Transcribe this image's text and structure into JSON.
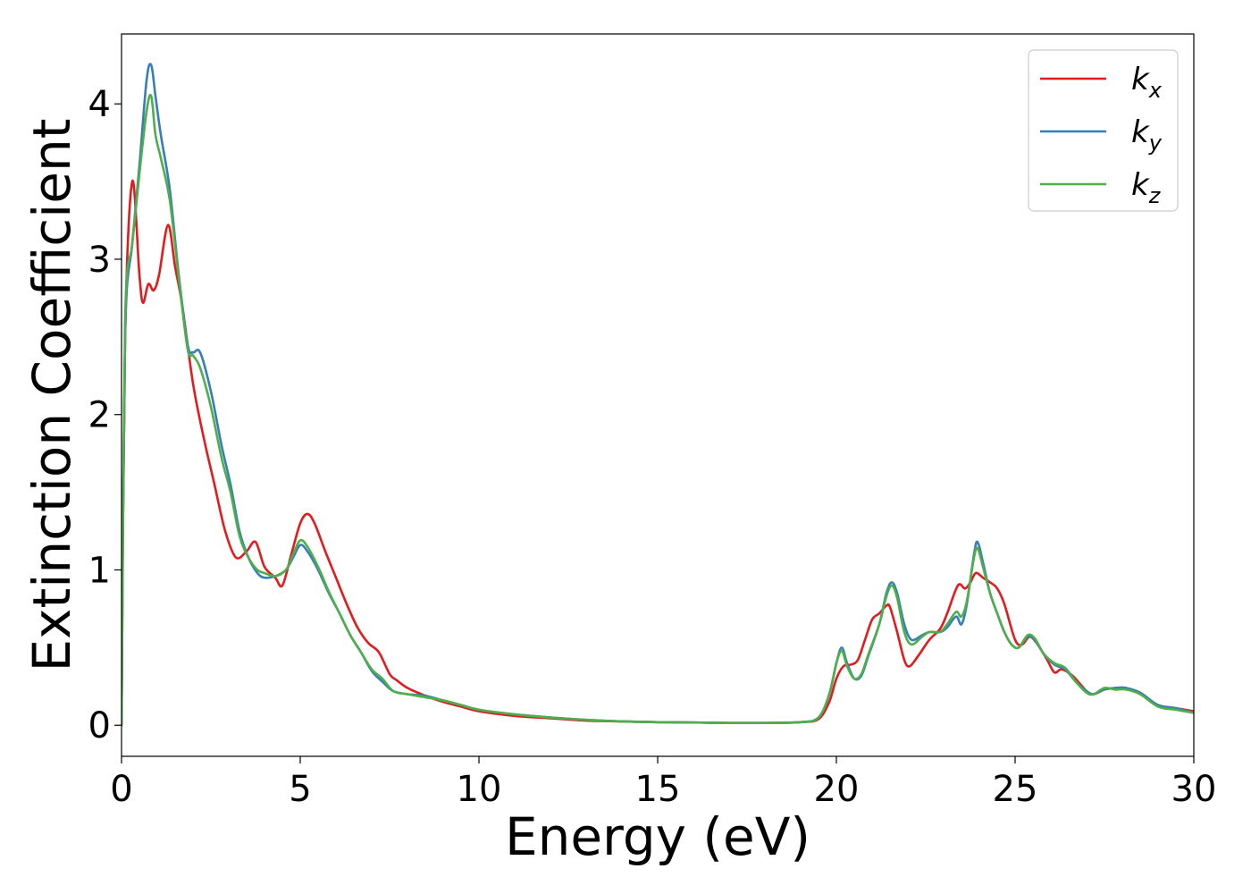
{
  "chart_data": {
    "type": "line",
    "xlabel": "Energy (eV)",
    "ylabel": "Extinction Coefficient",
    "xlim": [
      0,
      30
    ],
    "ylim": [
      -0.2,
      4.45
    ],
    "xticks": [
      0,
      5,
      10,
      15,
      20,
      25,
      30
    ],
    "yticks": [
      0,
      1,
      2,
      3,
      4
    ],
    "grid": false,
    "legend_position": "top-right",
    "series": [
      {
        "name": "k_x",
        "label_main": "k",
        "label_sub": "x",
        "color": "#e41a1c",
        "points": [
          [
            0,
            0
          ],
          [
            0.1,
            2.5
          ],
          [
            0.3,
            3.5
          ],
          [
            0.5,
            2.9
          ],
          [
            0.6,
            2.72
          ],
          [
            0.75,
            2.84
          ],
          [
            0.9,
            2.8
          ],
          [
            1.05,
            2.9
          ],
          [
            1.3,
            3.22
          ],
          [
            1.5,
            2.95
          ],
          [
            1.7,
            2.7
          ],
          [
            2,
            2.2
          ],
          [
            2.3,
            1.85
          ],
          [
            2.6,
            1.55
          ],
          [
            2.9,
            1.25
          ],
          [
            3.2,
            1.08
          ],
          [
            3.5,
            1.12
          ],
          [
            3.75,
            1.18
          ],
          [
            4,
            1.02
          ],
          [
            4.3,
            0.95
          ],
          [
            4.5,
            0.9
          ],
          [
            4.75,
            1.1
          ],
          [
            5,
            1.3
          ],
          [
            5.2,
            1.36
          ],
          [
            5.4,
            1.3
          ],
          [
            5.7,
            1.12
          ],
          [
            6,
            0.95
          ],
          [
            6.3,
            0.78
          ],
          [
            6.6,
            0.63
          ],
          [
            6.9,
            0.53
          ],
          [
            7.2,
            0.47
          ],
          [
            7.5,
            0.33
          ],
          [
            7.7,
            0.29
          ],
          [
            8,
            0.24
          ],
          [
            8.5,
            0.19
          ],
          [
            9,
            0.15
          ],
          [
            9.5,
            0.12
          ],
          [
            10,
            0.09
          ],
          [
            11,
            0.06
          ],
          [
            12,
            0.045
          ],
          [
            13,
            0.03
          ],
          [
            14,
            0.025
          ],
          [
            15,
            0.02
          ],
          [
            16,
            0.018
          ],
          [
            17,
            0.015
          ],
          [
            18,
            0.015
          ],
          [
            19,
            0.02
          ],
          [
            19.5,
            0.04
          ],
          [
            19.8,
            0.15
          ],
          [
            20,
            0.3
          ],
          [
            20.2,
            0.38
          ],
          [
            20.4,
            0.39
          ],
          [
            20.6,
            0.42
          ],
          [
            20.8,
            0.55
          ],
          [
            21,
            0.68
          ],
          [
            21.2,
            0.72
          ],
          [
            21.4,
            0.77
          ],
          [
            21.5,
            0.76
          ],
          [
            21.7,
            0.6
          ],
          [
            21.9,
            0.42
          ],
          [
            22.05,
            0.38
          ],
          [
            22.3,
            0.45
          ],
          [
            22.6,
            0.55
          ],
          [
            22.9,
            0.62
          ],
          [
            23.1,
            0.72
          ],
          [
            23.4,
            0.9
          ],
          [
            23.6,
            0.88
          ],
          [
            23.75,
            0.92
          ],
          [
            23.9,
            0.98
          ],
          [
            24.1,
            0.95
          ],
          [
            24.3,
            0.92
          ],
          [
            24.5,
            0.88
          ],
          [
            24.7,
            0.78
          ],
          [
            25,
            0.55
          ],
          [
            25.2,
            0.52
          ],
          [
            25.4,
            0.57
          ],
          [
            25.6,
            0.53
          ],
          [
            25.9,
            0.42
          ],
          [
            26.1,
            0.34
          ],
          [
            26.3,
            0.36
          ],
          [
            26.6,
            0.32
          ],
          [
            27,
            0.22
          ],
          [
            27.2,
            0.2
          ],
          [
            27.5,
            0.23
          ],
          [
            27.8,
            0.24
          ],
          [
            28.1,
            0.24
          ],
          [
            28.5,
            0.2
          ],
          [
            29,
            0.13
          ],
          [
            29.5,
            0.11
          ],
          [
            30,
            0.09
          ]
        ]
      },
      {
        "name": "k_y",
        "label_main": "k",
        "label_sub": "y",
        "color": "#377eb8",
        "points": [
          [
            0,
            0
          ],
          [
            0.1,
            2.5
          ],
          [
            0.3,
            3.1
          ],
          [
            0.5,
            3.6
          ],
          [
            0.7,
            4.15
          ],
          [
            0.83,
            4.25
          ],
          [
            0.95,
            4.05
          ],
          [
            1.1,
            3.8
          ],
          [
            1.35,
            3.45
          ],
          [
            1.6,
            2.9
          ],
          [
            1.85,
            2.45
          ],
          [
            2,
            2.4
          ],
          [
            2.2,
            2.4
          ],
          [
            2.5,
            2.15
          ],
          [
            2.8,
            1.8
          ],
          [
            3.05,
            1.55
          ],
          [
            3.3,
            1.25
          ],
          [
            3.55,
            1.08
          ],
          [
            3.8,
            0.98
          ],
          [
            4,
            0.95
          ],
          [
            4.3,
            0.96
          ],
          [
            4.6,
            1.0
          ],
          [
            4.8,
            1.08
          ],
          [
            5,
            1.16
          ],
          [
            5.2,
            1.12
          ],
          [
            5.5,
            1.0
          ],
          [
            5.8,
            0.85
          ],
          [
            6.1,
            0.72
          ],
          [
            6.4,
            0.58
          ],
          [
            6.7,
            0.47
          ],
          [
            7,
            0.35
          ],
          [
            7.3,
            0.28
          ],
          [
            7.6,
            0.22
          ],
          [
            8,
            0.2
          ],
          [
            8.5,
            0.19
          ],
          [
            9,
            0.16
          ],
          [
            9.5,
            0.13
          ],
          [
            10,
            0.1
          ],
          [
            11,
            0.07
          ],
          [
            12,
            0.05
          ],
          [
            13,
            0.035
          ],
          [
            14,
            0.025
          ],
          [
            15,
            0.02
          ],
          [
            16,
            0.018
          ],
          [
            17,
            0.015
          ],
          [
            18,
            0.015
          ],
          [
            19,
            0.02
          ],
          [
            19.5,
            0.05
          ],
          [
            19.8,
            0.2
          ],
          [
            20,
            0.4
          ],
          [
            20.15,
            0.5
          ],
          [
            20.3,
            0.4
          ],
          [
            20.5,
            0.3
          ],
          [
            20.7,
            0.32
          ],
          [
            20.9,
            0.45
          ],
          [
            21.2,
            0.65
          ],
          [
            21.4,
            0.85
          ],
          [
            21.55,
            0.92
          ],
          [
            21.7,
            0.85
          ],
          [
            21.9,
            0.65
          ],
          [
            22.1,
            0.55
          ],
          [
            22.4,
            0.58
          ],
          [
            22.6,
            0.6
          ],
          [
            22.9,
            0.6
          ],
          [
            23.1,
            0.63
          ],
          [
            23.35,
            0.7
          ],
          [
            23.5,
            0.65
          ],
          [
            23.65,
            0.78
          ],
          [
            23.85,
            1.1
          ],
          [
            23.95,
            1.18
          ],
          [
            24.1,
            1.05
          ],
          [
            24.3,
            0.85
          ],
          [
            24.5,
            0.72
          ],
          [
            24.7,
            0.6
          ],
          [
            24.9,
            0.52
          ],
          [
            25.1,
            0.5
          ],
          [
            25.35,
            0.57
          ],
          [
            25.55,
            0.55
          ],
          [
            25.8,
            0.46
          ],
          [
            26.1,
            0.39
          ],
          [
            26.4,
            0.36
          ],
          [
            26.7,
            0.28
          ],
          [
            27,
            0.22
          ],
          [
            27.2,
            0.2
          ],
          [
            27.5,
            0.23
          ],
          [
            27.8,
            0.24
          ],
          [
            28.1,
            0.24
          ],
          [
            28.5,
            0.21
          ],
          [
            29,
            0.13
          ],
          [
            29.5,
            0.11
          ],
          [
            30,
            0.08
          ]
        ]
      },
      {
        "name": "k_z",
        "label_main": "k",
        "label_sub": "z",
        "color": "#4daf4a",
        "points": [
          [
            0,
            0
          ],
          [
            0.1,
            2.6
          ],
          [
            0.3,
            3.1
          ],
          [
            0.5,
            3.55
          ],
          [
            0.7,
            3.95
          ],
          [
            0.83,
            4.05
          ],
          [
            0.95,
            3.8
          ],
          [
            1.1,
            3.65
          ],
          [
            1.35,
            3.38
          ],
          [
            1.6,
            2.88
          ],
          [
            1.85,
            2.42
          ],
          [
            2,
            2.38
          ],
          [
            2.2,
            2.3
          ],
          [
            2.5,
            2.05
          ],
          [
            2.8,
            1.72
          ],
          [
            3.05,
            1.5
          ],
          [
            3.3,
            1.22
          ],
          [
            3.55,
            1.08
          ],
          [
            3.8,
            1.0
          ],
          [
            4,
            0.98
          ],
          [
            4.3,
            0.96
          ],
          [
            4.6,
            1.0
          ],
          [
            4.8,
            1.1
          ],
          [
            5,
            1.19
          ],
          [
            5.2,
            1.15
          ],
          [
            5.5,
            1.02
          ],
          [
            5.8,
            0.86
          ],
          [
            6.1,
            0.72
          ],
          [
            6.4,
            0.58
          ],
          [
            6.7,
            0.47
          ],
          [
            7,
            0.36
          ],
          [
            7.3,
            0.3
          ],
          [
            7.6,
            0.22
          ],
          [
            8,
            0.2
          ],
          [
            8.5,
            0.18
          ],
          [
            9,
            0.16
          ],
          [
            9.5,
            0.13
          ],
          [
            10,
            0.1
          ],
          [
            11,
            0.07
          ],
          [
            12,
            0.05
          ],
          [
            13,
            0.035
          ],
          [
            14,
            0.025
          ],
          [
            15,
            0.02
          ],
          [
            16,
            0.018
          ],
          [
            17,
            0.015
          ],
          [
            18,
            0.015
          ],
          [
            19,
            0.02
          ],
          [
            19.5,
            0.05
          ],
          [
            19.8,
            0.2
          ],
          [
            20,
            0.4
          ],
          [
            20.15,
            0.48
          ],
          [
            20.3,
            0.38
          ],
          [
            20.5,
            0.3
          ],
          [
            20.7,
            0.33
          ],
          [
            20.9,
            0.46
          ],
          [
            21.2,
            0.65
          ],
          [
            21.4,
            0.83
          ],
          [
            21.55,
            0.9
          ],
          [
            21.7,
            0.82
          ],
          [
            21.9,
            0.6
          ],
          [
            22.1,
            0.52
          ],
          [
            22.4,
            0.57
          ],
          [
            22.6,
            0.6
          ],
          [
            22.9,
            0.6
          ],
          [
            23.1,
            0.65
          ],
          [
            23.35,
            0.73
          ],
          [
            23.5,
            0.7
          ],
          [
            23.65,
            0.8
          ],
          [
            23.85,
            1.08
          ],
          [
            23.95,
            1.14
          ],
          [
            24.1,
            1.02
          ],
          [
            24.3,
            0.85
          ],
          [
            24.5,
            0.72
          ],
          [
            24.7,
            0.6
          ],
          [
            24.9,
            0.52
          ],
          [
            25.1,
            0.5
          ],
          [
            25.35,
            0.58
          ],
          [
            25.55,
            0.56
          ],
          [
            25.8,
            0.46
          ],
          [
            26.1,
            0.4
          ],
          [
            26.4,
            0.37
          ],
          [
            26.7,
            0.28
          ],
          [
            27,
            0.21
          ],
          [
            27.2,
            0.2
          ],
          [
            27.5,
            0.24
          ],
          [
            27.8,
            0.23
          ],
          [
            28.1,
            0.23
          ],
          [
            28.5,
            0.2
          ],
          [
            29,
            0.12
          ],
          [
            29.5,
            0.1
          ],
          [
            30,
            0.08
          ]
        ]
      }
    ]
  }
}
